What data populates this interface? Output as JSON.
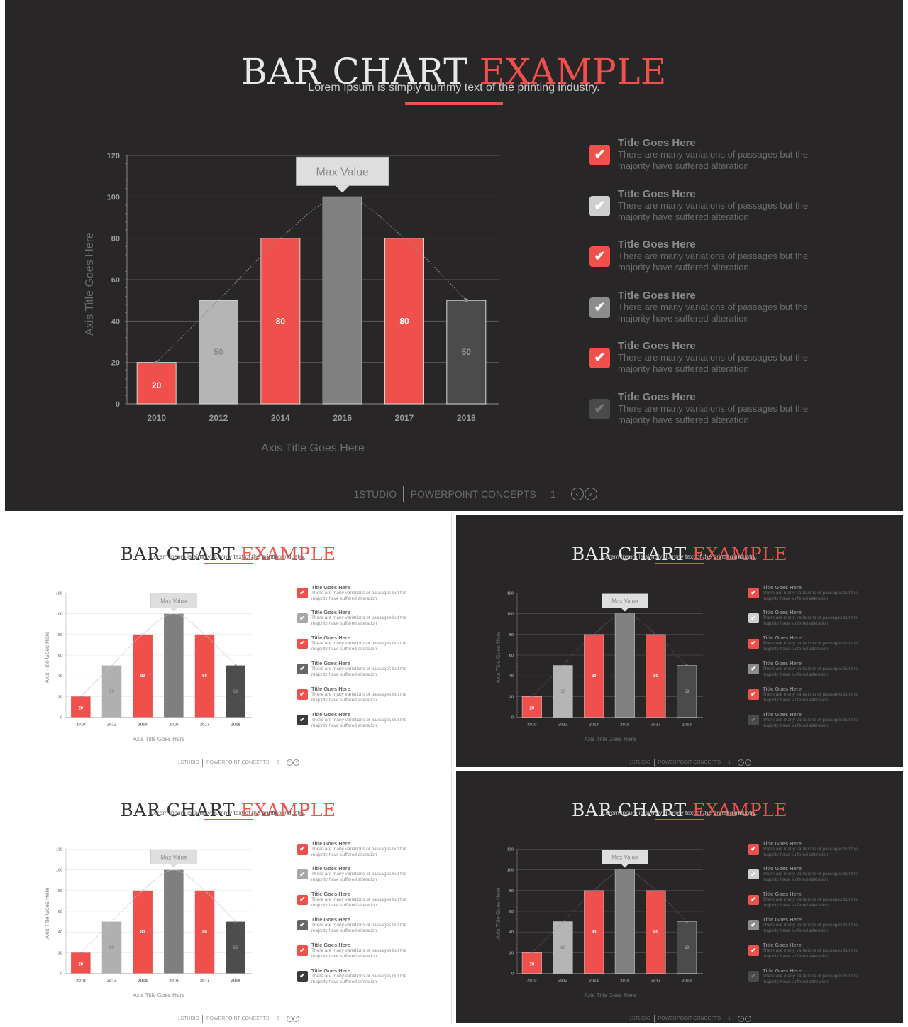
{
  "slide": {
    "title_main": "BAR CHART",
    "title_accent": "EXAMPLE",
    "subtitle": "Lorem Ipsum is simply dummy text of the printing industry.",
    "callout": "Max Value",
    "footer": {
      "studio": "1STUDIO",
      "concepts": "POWERPOINT CONCEPTS",
      "prev_icon": "chevron-left-icon",
      "next_icon": "chevron-right-icon"
    },
    "list_items": [
      {
        "title": "Title Goes Here",
        "desc": "There are many variations of passages  but the majority have  suffered  alteration",
        "icon": "check-icon"
      },
      {
        "title": "Title Goes Here",
        "desc": "There are many variations of passages  but the majority have  suffered  alteration",
        "icon": "check-icon"
      },
      {
        "title": "Title Goes Here",
        "desc": "There are many variations of passages  but the majority have  suffered  alteration",
        "icon": "check-icon"
      },
      {
        "title": "Title Goes Here",
        "desc": "There are many variations of passages  but the majority have  suffered  alteration",
        "icon": "check-icon"
      },
      {
        "title": "Title Goes Here",
        "desc": "There are many variations of passages  but the majority have  suffered  alteration",
        "icon": "check-icon"
      },
      {
        "title": "Title Goes Here",
        "desc": "There are many variations of passages  but the majority have  suffered  alteration",
        "icon": "check-icon"
      }
    ]
  },
  "colors": {
    "accent": "#ef504b",
    "dark_background": "#282626",
    "light_background": "#ffffff",
    "checkbox_dark_theme": [
      "#ef504b",
      "#cfcfcf",
      "#ef504b",
      "#8c8c8c",
      "#ef504b",
      "#4a4a4a"
    ],
    "checkbox_light_theme": [
      "#ef504b",
      "#a8a8a8",
      "#ef504b",
      "#666666",
      "#ef504b",
      "#3a3a3a"
    ]
  },
  "slides": [
    {
      "id": "slide-1",
      "theme": "dark",
      "page": "1"
    },
    {
      "id": "slide-2",
      "theme": "light",
      "page": "2"
    },
    {
      "id": "slide-3",
      "theme": "dark",
      "page": "1"
    },
    {
      "id": "slide-4",
      "theme": "light",
      "page": "2"
    },
    {
      "id": "slide-5",
      "theme": "dark",
      "page": "1"
    }
  ],
  "chart_data": {
    "type": "bar",
    "categories": [
      "2010",
      "2012",
      "2014",
      "2016",
      "2017",
      "2018"
    ],
    "values": [
      20,
      50,
      80,
      100,
      80,
      50
    ],
    "data_labels": [
      "20",
      "50",
      "80",
      "",
      "80",
      "50"
    ],
    "bar_colors_dark_theme": [
      "#ef504b",
      "#b5b5b5",
      "#ef504b",
      "#808080",
      "#ef504b",
      "#4b4b4b"
    ],
    "bar_colors_light_theme": [
      "#ef504b",
      "#b0b0b0",
      "#ef504b",
      "#7f7f7f",
      "#ef504b",
      "#4d4d4d"
    ],
    "xlabel": "Axis Title Goes Here",
    "ylabel": "Axis Title Goes Here",
    "ylim": [
      0,
      120
    ],
    "yticks": [
      0,
      20,
      40,
      60,
      80,
      100,
      120
    ],
    "grid": true,
    "trend_line": "dotted curve through bar tops",
    "annotation": {
      "text": "Max Value",
      "category": "2016"
    }
  }
}
